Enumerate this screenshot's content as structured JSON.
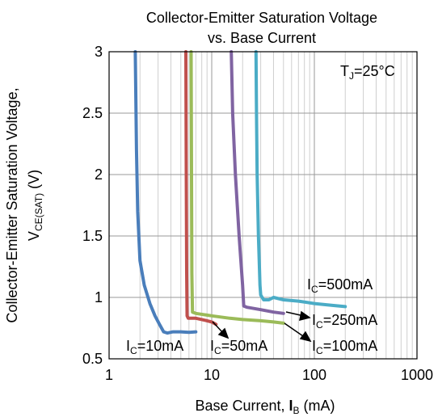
{
  "chart_data": {
    "type": "line",
    "title": [
      "Collector-Emitter Saturation Voltage",
      "vs. Base Current"
    ],
    "ylabel": {
      "line1": "Collector-Emitter Saturation Voltage,",
      "main": "V",
      "sub": "CE(SAT)",
      "unit": " (V)"
    },
    "xlabel": {
      "pre": "Base Current, ",
      "main": "I",
      "sub": "B",
      "unit": " (mA)"
    },
    "annotation": {
      "main": "T",
      "sub": "J",
      "rest": "=25°C"
    },
    "x_scale": "log",
    "xlim": [
      1,
      1000
    ],
    "ylim": [
      0.5,
      3
    ],
    "x_ticks": [
      1,
      10,
      100,
      1000
    ],
    "x_tick_labels": [
      "1",
      "10",
      "100",
      "1000"
    ],
    "y_ticks": [
      0.5,
      1,
      1.5,
      2,
      2.5,
      3
    ],
    "y_tick_labels": [
      "0.5",
      "1",
      "1.5",
      "2",
      "2.5",
      "3"
    ],
    "grid": true,
    "legend": "none",
    "series": [
      {
        "name": "IC=10mA",
        "label_main": "I",
        "label_sub": "C",
        "label_rest": "=10mA",
        "color": "#4a7ebb",
        "points": [
          [
            1.8,
            3
          ],
          [
            1.85,
            2.2
          ],
          [
            1.9,
            1.7
          ],
          [
            2.0,
            1.3
          ],
          [
            2.2,
            1.1
          ],
          [
            2.5,
            0.95
          ],
          [
            2.8,
            0.85
          ],
          [
            3.1,
            0.78
          ],
          [
            3.4,
            0.72
          ],
          [
            3.7,
            0.71
          ],
          [
            4.2,
            0.72
          ],
          [
            5,
            0.72
          ],
          [
            6,
            0.715
          ],
          [
            7,
            0.72
          ]
        ]
      },
      {
        "name": "IC=50mA",
        "label_main": "I",
        "label_sub": "C",
        "label_rest": "=50mA",
        "color": "#c0504d",
        "points": [
          [
            5.6,
            3
          ],
          [
            5.65,
            2.0
          ],
          [
            5.7,
            1.2
          ],
          [
            5.75,
            0.85
          ],
          [
            5.9,
            0.83
          ],
          [
            7,
            0.83
          ],
          [
            8,
            0.82
          ],
          [
            9,
            0.81
          ],
          [
            10,
            0.8
          ],
          [
            11,
            0.78
          ]
        ]
      },
      {
        "name": "IC=100mA",
        "label_main": "I",
        "label_sub": "C",
        "label_rest": "=100mA",
        "color": "#9bbb59",
        "points": [
          [
            6.3,
            3
          ],
          [
            6.35,
            2.0
          ],
          [
            6.4,
            1.2
          ],
          [
            6.5,
            0.88
          ],
          [
            7,
            0.87
          ],
          [
            10,
            0.85
          ],
          [
            15,
            0.83
          ],
          [
            20,
            0.82
          ],
          [
            30,
            0.81
          ],
          [
            40,
            0.8
          ],
          [
            50,
            0.79
          ]
        ]
      },
      {
        "name": "IC=250mA",
        "label_main": "I",
        "label_sub": "C",
        "label_rest": "=250mA",
        "color": "#8064a2",
        "points": [
          [
            15.5,
            3
          ],
          [
            16,
            2.5
          ],
          [
            17,
            2.0
          ],
          [
            18.5,
            1.5
          ],
          [
            20,
            1.1
          ],
          [
            20.5,
            0.93
          ],
          [
            22,
            0.92
          ],
          [
            30,
            0.9
          ],
          [
            40,
            0.88
          ],
          [
            50,
            0.87
          ]
        ]
      },
      {
        "name": "IC=500mA",
        "label_main": "I",
        "label_sub": "C",
        "label_rest": "=500mA",
        "color": "#4bacc6",
        "points": [
          [
            27,
            3
          ],
          [
            27.3,
            2.5
          ],
          [
            27.7,
            2.0
          ],
          [
            28.5,
            1.5
          ],
          [
            29.5,
            1.1
          ],
          [
            30,
            1.02
          ],
          [
            32,
            0.98
          ],
          [
            36,
            0.98
          ],
          [
            40,
            1.0
          ],
          [
            50,
            0.98
          ],
          [
            70,
            0.97
          ],
          [
            100,
            0.95
          ],
          [
            150,
            0.935
          ],
          [
            200,
            0.925
          ]
        ]
      }
    ]
  }
}
